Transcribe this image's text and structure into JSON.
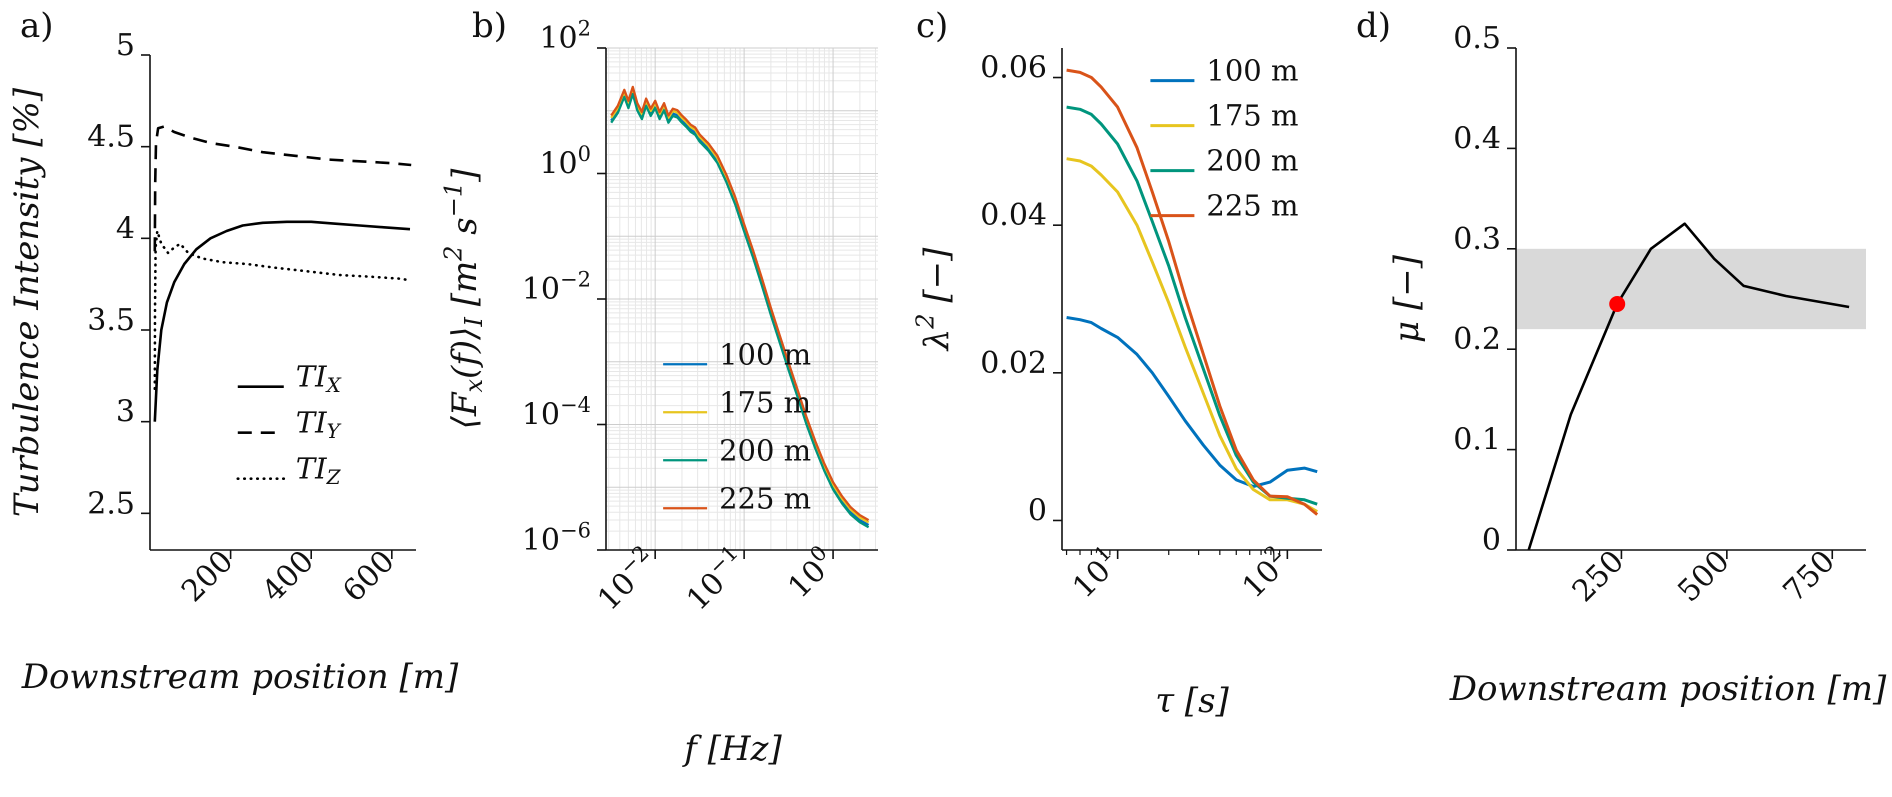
{
  "panels": [
    {
      "tag": "a)"
    },
    {
      "tag": "b)"
    },
    {
      "tag": "c)"
    },
    {
      "tag": "d)"
    }
  ],
  "colors": {
    "blue": "#0072BD",
    "yellow": "#E7C51F",
    "teal": "#00957D",
    "orange": "#D95319",
    "black": "#000000",
    "band_gray": "#d9d9d9",
    "marker_red": "#FF0000"
  },
  "chart_data": [
    {
      "id": "a",
      "type": "line",
      "xscale": "linear",
      "yscale": "linear",
      "xlabel": "Downstream position [m]",
      "ylabel": "Turbulence Intensity [%]",
      "xlim": [
        0,
        660
      ],
      "ylim": [
        2.3,
        5
      ],
      "xticks": {
        "values": [
          200,
          400,
          600
        ],
        "labels": [
          "200",
          "400",
          "600"
        ]
      },
      "yticks": {
        "values": [
          2.5,
          3,
          3.5,
          4,
          4.5,
          5
        ],
        "labels": [
          "2.5",
          "3",
          "3.5",
          "4",
          "4.5",
          "5"
        ]
      },
      "legend_position": "lower right",
      "series": [
        {
          "name": "TI_{X}",
          "color": "#000000",
          "style": "solid",
          "x": [
            12,
            18,
            28,
            42,
            60,
            85,
            115,
            150,
            190,
            230,
            280,
            340,
            400,
            460,
            520,
            580,
            645
          ],
          "y": [
            3.0,
            3.28,
            3.5,
            3.65,
            3.76,
            3.86,
            3.94,
            4.0,
            4.04,
            4.07,
            4.085,
            4.09,
            4.09,
            4.08,
            4.07,
            4.06,
            4.05
          ]
        },
        {
          "name": "TI_{Y}",
          "color": "#000000",
          "style": "dashed",
          "x": [
            12,
            13,
            15,
            20,
            35,
            60,
            100,
            150,
            210,
            280,
            360,
            440,
            520,
            600,
            648
          ],
          "y": [
            3.93,
            4.3,
            4.52,
            4.6,
            4.61,
            4.58,
            4.55,
            4.52,
            4.5,
            4.47,
            4.45,
            4.43,
            4.42,
            4.41,
            4.4
          ]
        },
        {
          "name": "TI_{Z}",
          "color": "#000000",
          "style": "dotted",
          "x": [
            12,
            12.5,
            14,
            18,
            28,
            45,
            60,
            75,
            95,
            130,
            180,
            240,
            310,
            390,
            470,
            550,
            620,
            648
          ],
          "y": [
            3.18,
            3.6,
            3.95,
            4.04,
            3.97,
            3.92,
            3.95,
            3.97,
            3.92,
            3.89,
            3.87,
            3.86,
            3.84,
            3.82,
            3.8,
            3.79,
            3.78,
            3.77
          ]
        }
      ]
    },
    {
      "id": "b",
      "type": "line",
      "xscale": "log",
      "yscale": "log",
      "grid": true,
      "xlabel": "f [Hz]",
      "ylabel": "⟨F_{x}(f)⟩_{I} [m^{2} s^{−1}]",
      "xlim": [
        0.0028,
        3.2
      ],
      "ylim": [
        1e-06,
        100
      ],
      "xticks": {
        "values": [
          0.01,
          0.1,
          1
        ],
        "labels": [
          "10^{−2}",
          "10^{−1}",
          "10^{0}"
        ]
      },
      "yticks": {
        "values": [
          1e-06,
          0.0001,
          0.01,
          1,
          100
        ],
        "labels": [
          "10^{−6}",
          "10^{−4}",
          "10^{−2}",
          "10^{0}",
          "10^{2}"
        ]
      },
      "legend_position": "lower left",
      "x_shared": [
        0.0032,
        0.0038,
        0.0045,
        0.005,
        0.0056,
        0.0063,
        0.0071,
        0.0079,
        0.0089,
        0.01,
        0.0112,
        0.0126,
        0.0141,
        0.0158,
        0.0178,
        0.02,
        0.0224,
        0.0251,
        0.0282,
        0.0316,
        0.0398,
        0.0501,
        0.0631,
        0.0794,
        0.1,
        0.126,
        0.158,
        0.2,
        0.251,
        0.316,
        0.398,
        0.501,
        0.631,
        0.794,
        1.0,
        1.26,
        1.58,
        2.0,
        2.51
      ],
      "y_shared": [
        7,
        10,
        18,
        12,
        20,
        11,
        8,
        13,
        9,
        12,
        8,
        11,
        7,
        9,
        8.5,
        7,
        6,
        5,
        4.5,
        3.5,
        2.5,
        1.6,
        0.8,
        0.35,
        0.13,
        0.05,
        0.018,
        0.006,
        0.0022,
        0.0008,
        0.0003,
        0.00011,
        4.5e-05,
        2e-05,
        1e-05,
        6e-06,
        4e-06,
        3e-06,
        2.5e-06
      ],
      "series": [
        {
          "name": "100 m",
          "color": "#0072BD",
          "style": "solid",
          "y_scale": 1.0
        },
        {
          "name": "175 m",
          "color": "#E7C51F",
          "style": "solid",
          "y_scale": 1.1
        },
        {
          "name": "200 m",
          "color": "#00957D",
          "style": "solid",
          "y_scale": 0.92
        },
        {
          "name": "225 m",
          "color": "#D95319",
          "style": "solid",
          "y_scale": 1.2
        }
      ]
    },
    {
      "id": "c",
      "type": "line",
      "xscale": "log",
      "yscale": "linear",
      "x_minor_ticks": true,
      "xlabel": "τ [s]",
      "ylabel": "λ^{2} [−]",
      "xlim": [
        4.7,
        160
      ],
      "ylim": [
        -0.004,
        0.064
      ],
      "xticks": {
        "values": [
          10,
          100
        ],
        "labels": [
          "10^{1}",
          "10^{2}"
        ]
      },
      "yticks": {
        "values": [
          0,
          0.02,
          0.04,
          0.06
        ],
        "labels": [
          "0",
          "0.02",
          "0.04",
          "0.06"
        ]
      },
      "legend_position": "upper right",
      "x_shared": [
        5,
        6,
        7,
        8,
        10,
        13,
        16,
        20,
        25,
        32,
        40,
        50,
        63,
        79,
        100,
        126,
        150
      ],
      "series": [
        {
          "name": "100 m",
          "color": "#0072BD",
          "style": "solid",
          "y": [
            0.0275,
            0.0272,
            0.0268,
            0.026,
            0.0248,
            0.0225,
            0.02,
            0.0168,
            0.0135,
            0.0102,
            0.0075,
            0.0055,
            0.0046,
            0.0052,
            0.0068,
            0.0071,
            0.0066
          ]
        },
        {
          "name": "175 m",
          "color": "#E7C51F",
          "style": "solid",
          "y": [
            0.049,
            0.0487,
            0.048,
            0.0468,
            0.0445,
            0.04,
            0.035,
            0.0295,
            0.0235,
            0.0172,
            0.0115,
            0.007,
            0.0042,
            0.0028,
            0.0028,
            0.0022,
            0.0012
          ]
        },
        {
          "name": "200 m",
          "color": "#00957D",
          "style": "solid",
          "y": [
            0.056,
            0.0557,
            0.055,
            0.0537,
            0.051,
            0.046,
            0.0405,
            0.0345,
            0.0275,
            0.0205,
            0.0142,
            0.0088,
            0.0052,
            0.0033,
            0.003,
            0.0028,
            0.0022
          ]
        },
        {
          "name": "225 m",
          "color": "#D95319",
          "style": "solid",
          "y": [
            0.061,
            0.0607,
            0.06,
            0.0587,
            0.056,
            0.0505,
            0.0445,
            0.0378,
            0.0302,
            0.0225,
            0.0155,
            0.0095,
            0.0055,
            0.0033,
            0.0032,
            0.0022,
            0.0008
          ]
        }
      ]
    },
    {
      "id": "d",
      "type": "line",
      "xscale": "linear",
      "yscale": "linear",
      "xlabel": "Downstream position [m]",
      "ylabel": "μ [−]",
      "xlim": [
        0,
        830
      ],
      "ylim": [
        0,
        0.5
      ],
      "xticks": {
        "values": [
          250,
          500,
          750
        ],
        "labels": [
          "250",
          "500",
          "750"
        ]
      },
      "yticks": {
        "values": [
          0,
          0.1,
          0.2,
          0.3,
          0.4,
          0.5
        ],
        "labels": [
          "0",
          "0.1",
          "0.2",
          "0.3",
          "0.4",
          "0.5"
        ]
      },
      "band": {
        "y0": 0.22,
        "y1": 0.3,
        "color": "#d9d9d9"
      },
      "marker": {
        "x": 240,
        "y": 0.245,
        "r": 8,
        "color": "#FF0000"
      },
      "series": [
        {
          "name": "mu",
          "color": "#000000",
          "style": "solid",
          "x": [
            30,
            130,
            240,
            320,
            400,
            470,
            540,
            640,
            790
          ],
          "y": [
            0,
            0.135,
            0.245,
            0.3,
            0.325,
            0.29,
            0.263,
            0.253,
            0.242
          ]
        }
      ]
    }
  ]
}
